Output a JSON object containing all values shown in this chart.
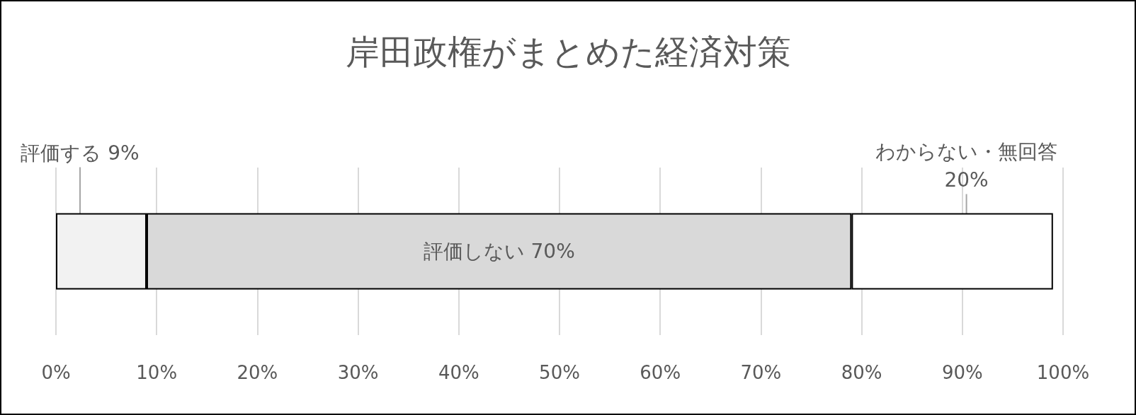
{
  "chart_data": {
    "type": "bar",
    "title": "岸田政権がまとめた経済対策",
    "orientation": "horizontal",
    "stacked": true,
    "categories": [
      null
    ],
    "series": [
      {
        "name": "評価する",
        "color": "#f2f2f2",
        "values": [
          9
        ],
        "value_labels": [
          "9%"
        ]
      },
      {
        "name": "評価しない",
        "color": "#d9d9d9",
        "values": [
          70
        ],
        "value_labels": [
          "70%"
        ]
      },
      {
        "name": "わからない・無回答",
        "color": "#ffffff",
        "values": [
          20
        ],
        "value_labels": [
          "20%"
        ]
      }
    ],
    "xlim": [
      0,
      100
    ],
    "xticks": [
      {
        "value": 0,
        "label": "0%"
      },
      {
        "value": 10,
        "label": "10%"
      },
      {
        "value": 20,
        "label": "20%"
      },
      {
        "value": 30,
        "label": "30%"
      },
      {
        "value": 40,
        "label": "40%"
      },
      {
        "value": 50,
        "label": "50%"
      },
      {
        "value": 60,
        "label": "60%"
      },
      {
        "value": 70,
        "label": "70%"
      },
      {
        "value": 80,
        "label": "80%"
      },
      {
        "value": 90,
        "label": "90%"
      },
      {
        "value": 100,
        "label": "100%"
      }
    ],
    "grid": "x",
    "legend": false,
    "tick_labels": "x"
  }
}
